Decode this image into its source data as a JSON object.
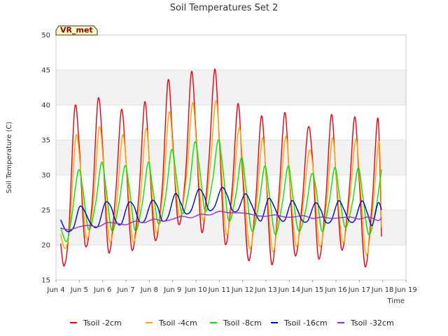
{
  "chart_data": {
    "type": "line",
    "title": "Soil Temperatures Set 2",
    "xlabel": "Time",
    "ylabel": "Soil Temperature (C)",
    "station_label": "VR_met",
    "ylim": [
      15,
      50
    ],
    "yticks": [
      15,
      20,
      25,
      30,
      35,
      40,
      45,
      50
    ],
    "xlim": [
      4,
      19
    ],
    "xticks": [
      {
        "value": 4,
        "label": "Jun 4"
      },
      {
        "value": 5,
        "label": "Jun 5"
      },
      {
        "value": 6,
        "label": "Jun 6"
      },
      {
        "value": 7,
        "label": "Jun 7"
      },
      {
        "value": 8,
        "label": "Jun 8"
      },
      {
        "value": 9,
        "label": "Jun 9"
      },
      {
        "value": 10,
        "label": "Jun 10"
      },
      {
        "value": 11,
        "label": "Jun 11"
      },
      {
        "value": 12,
        "label": "Jun 12"
      },
      {
        "value": 13,
        "label": "Jun 13"
      },
      {
        "value": 14,
        "label": "Jun 14"
      },
      {
        "value": 15,
        "label": "Jun 15"
      },
      {
        "value": 16,
        "label": "Jun 16"
      },
      {
        "value": 17,
        "label": "Jun 17"
      },
      {
        "value": 18,
        "label": "Jun 18"
      },
      {
        "value": 19,
        "label": "Jun 19"
      }
    ],
    "grid": "horizontal shaded bands",
    "legend_position": "bottom",
    "series": [
      {
        "name": "Tsoil -2cm",
        "color": "#e8000b",
        "x": [
          4.2,
          4.35,
          4.55,
          4.8,
          5.0,
          5.25,
          5.55,
          5.8,
          6.0,
          6.25,
          6.55,
          6.8,
          7.0,
          7.25,
          7.55,
          7.8,
          8.0,
          8.25,
          8.55,
          8.8,
          9.0,
          9.25,
          9.55,
          9.8,
          10.0,
          10.25,
          10.55,
          10.8,
          11.0,
          11.25,
          11.55,
          11.8,
          12.0,
          12.25,
          12.55,
          12.8,
          13.0,
          13.25,
          13.55,
          13.8,
          14.0,
          14.25,
          14.55,
          14.8,
          15.0,
          15.25,
          15.55,
          15.8,
          16.0,
          16.25,
          16.55,
          16.8,
          17.0,
          17.25,
          17.55,
          17.8,
          17.95
        ],
        "y": [
          20.2,
          17.0,
          22.0,
          39.5,
          34.0,
          20.0,
          26.0,
          40.8,
          34.0,
          19.0,
          27.0,
          39.3,
          32.0,
          19.3,
          27.0,
          40.4,
          32.0,
          20.7,
          28.0,
          43.5,
          35.0,
          23.0,
          30.0,
          44.7,
          36.0,
          21.8,
          32.0,
          45.1,
          35.0,
          20.2,
          28.0,
          40.2,
          30.0,
          17.8,
          26.0,
          38.4,
          30.0,
          17.2,
          27.0,
          38.9,
          30.0,
          18.5,
          26.0,
          36.7,
          32.0,
          18.1,
          26.0,
          38.6,
          30.0,
          19.3,
          27.0,
          38.3,
          29.0,
          16.9,
          26.0,
          38.1,
          21.2
        ]
      },
      {
        "name": "Tsoil -4cm",
        "color": "#ffa500",
        "x": [
          4.2,
          4.4,
          4.6,
          4.85,
          5.05,
          5.3,
          5.6,
          5.85,
          6.05,
          6.3,
          6.6,
          6.85,
          7.05,
          7.3,
          7.6,
          7.85,
          8.05,
          8.3,
          8.6,
          8.85,
          9.05,
          9.3,
          9.6,
          9.85,
          10.05,
          10.3,
          10.6,
          10.85,
          11.05,
          11.3,
          11.6,
          11.85,
          12.05,
          12.3,
          12.6,
          12.85,
          13.05,
          13.3,
          13.6,
          13.85,
          14.05,
          14.3,
          14.6,
          14.85,
          15.05,
          15.3,
          15.6,
          15.85,
          16.05,
          16.3,
          16.6,
          16.85,
          17.05,
          17.3,
          17.6,
          17.85,
          17.95
        ],
        "y": [
          21.5,
          19.5,
          23.0,
          35.5,
          31.0,
          21.0,
          26.0,
          36.8,
          31.0,
          20.5,
          26.0,
          35.7,
          30.0,
          20.5,
          26.0,
          36.6,
          30.0,
          21.8,
          28.0,
          39.0,
          32.0,
          24.0,
          30.0,
          40.3,
          33.0,
          23.5,
          31.0,
          40.6,
          33.0,
          21.5,
          28.0,
          36.8,
          29.0,
          19.5,
          26.0,
          35.3,
          28.0,
          19.0,
          27.0,
          35.5,
          28.0,
          19.8,
          26.0,
          33.4,
          30.0,
          19.8,
          26.0,
          35.3,
          28.0,
          20.3,
          27.0,
          35.1,
          28.0,
          18.5,
          26.0,
          34.8,
          22.5
        ]
      },
      {
        "name": "Tsoil -8cm",
        "color": "#00e600",
        "x": [
          4.2,
          4.45,
          4.65,
          4.95,
          5.15,
          5.4,
          5.7,
          5.95,
          6.15,
          6.4,
          6.7,
          6.95,
          7.15,
          7.4,
          7.7,
          7.95,
          8.15,
          8.4,
          8.7,
          8.95,
          9.15,
          9.4,
          9.7,
          9.95,
          10.15,
          10.4,
          10.7,
          10.95,
          11.15,
          11.4,
          11.7,
          11.95,
          12.15,
          12.4,
          12.7,
          12.95,
          13.15,
          13.4,
          13.7,
          13.95,
          14.15,
          14.4,
          14.7,
          14.95,
          15.15,
          15.4,
          15.7,
          15.95,
          16.15,
          16.4,
          16.7,
          16.95,
          17.15,
          17.4,
          17.7,
          17.95
        ],
        "y": [
          22.5,
          20.5,
          23.5,
          30.6,
          28.0,
          22.2,
          26.0,
          31.8,
          28.0,
          22.0,
          26.0,
          31.3,
          28.0,
          22.0,
          26.0,
          31.8,
          28.0,
          23.0,
          27.0,
          33.6,
          30.0,
          24.5,
          28.0,
          34.7,
          31.0,
          24.8,
          29.0,
          35.0,
          31.0,
          23.5,
          27.0,
          32.5,
          28.0,
          22.0,
          26.0,
          31.3,
          27.0,
          21.5,
          26.0,
          31.3,
          27.0,
          22.0,
          25.0,
          30.1,
          28.0,
          22.0,
          26.0,
          31.1,
          27.0,
          22.5,
          26.0,
          31.0,
          27.0,
          21.5,
          25.0,
          30.8
        ]
      },
      {
        "name": "Tsoil -16cm",
        "color": "#0000cc",
        "x": [
          4.2,
          4.45,
          4.75,
          5.0,
          5.2,
          5.5,
          5.8,
          6.1,
          6.35,
          6.55,
          6.8,
          7.1,
          7.35,
          7.55,
          7.8,
          8.1,
          8.35,
          8.55,
          8.8,
          9.1,
          9.35,
          9.55,
          9.8,
          10.1,
          10.35,
          10.55,
          10.8,
          11.1,
          11.35,
          11.55,
          11.8,
          12.1,
          12.35,
          12.55,
          12.8,
          13.1,
          13.35,
          13.55,
          13.8,
          14.1,
          14.35,
          14.55,
          14.8,
          15.1,
          15.35,
          15.55,
          15.8,
          16.1,
          16.35,
          16.55,
          16.8,
          17.1,
          17.35,
          17.55,
          17.8,
          17.95
        ],
        "y": [
          23.6,
          22.0,
          22.5,
          25.4,
          25.0,
          23.0,
          22.7,
          26.0,
          25.5,
          23.5,
          23.0,
          26.0,
          25.5,
          23.5,
          23.5,
          26.3,
          25.5,
          23.5,
          24.0,
          27.3,
          26.0,
          24.5,
          25.0,
          27.9,
          27.0,
          25.0,
          25.5,
          28.2,
          27.0,
          25.0,
          25.0,
          27.3,
          26.0,
          24.5,
          23.5,
          26.6,
          25.5,
          24.0,
          23.5,
          26.3,
          25.0,
          23.5,
          23.5,
          26.0,
          25.0,
          23.3,
          23.5,
          26.3,
          25.0,
          23.5,
          23.5,
          26.3,
          24.5,
          22.8,
          26.0,
          25.0
        ]
      },
      {
        "name": "Tsoil -32cm",
        "color": "#9932cc",
        "x": [
          4.2,
          4.6,
          5.0,
          5.4,
          5.8,
          6.2,
          6.6,
          7.0,
          7.4,
          7.8,
          8.2,
          8.6,
          9.0,
          9.4,
          9.8,
          10.2,
          10.6,
          11.0,
          11.4,
          11.8,
          12.2,
          12.6,
          13.0,
          13.4,
          13.8,
          14.2,
          14.6,
          15.0,
          15.4,
          15.8,
          16.2,
          16.6,
          17.0,
          17.4,
          17.8,
          17.95
        ],
        "y": [
          22.4,
          22.2,
          22.6,
          22.8,
          22.6,
          23.2,
          23.1,
          22.9,
          23.4,
          23.2,
          23.7,
          23.4,
          23.7,
          24.1,
          23.9,
          24.4,
          24.3,
          24.8,
          24.6,
          24.6,
          24.5,
          24.2,
          24.1,
          24.3,
          24.0,
          24.0,
          24.2,
          23.8,
          24.0,
          23.8,
          23.9,
          24.0,
          23.7,
          24.0,
          23.5,
          23.9
        ]
      }
    ]
  }
}
